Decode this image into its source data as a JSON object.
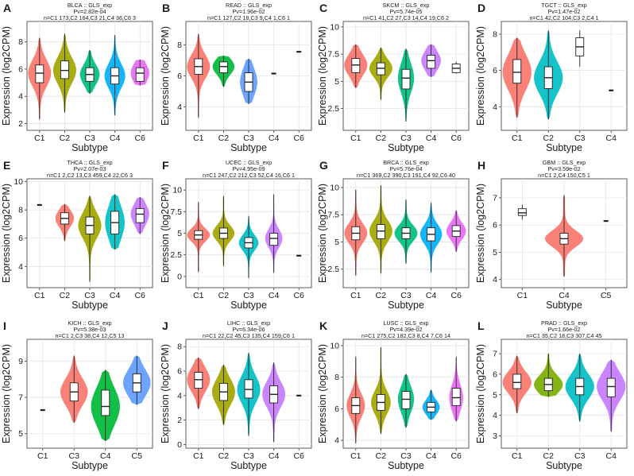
{
  "chart_data": [
    {
      "letter": "A",
      "type": "violin",
      "title": [
        "BLCA :: GLS_exp",
        "Pv=2.82e-04",
        "n=C1 173,C2 164,C3 21,C4 36,C6 3"
      ],
      "xlabel": "Subtype",
      "ylabel": "Expression (log2CPM)",
      "ylim": [
        1.5,
        9.5
      ],
      "yticks": [
        2,
        4,
        6,
        8
      ],
      "categories": [
        "C1",
        "C2",
        "C3",
        "C4",
        "C6"
      ],
      "colors": [
        "#F8766D",
        "#A3A500",
        "#00BF7D",
        "#00B0F6",
        "#E76BF3"
      ],
      "groups": [
        {
          "median": 5.7,
          "q1": 5.0,
          "q3": 6.3,
          "min": 2.3,
          "max": 8.3,
          "width": 1.0
        },
        {
          "median": 5.9,
          "q1": 5.3,
          "q3": 6.6,
          "min": 2.8,
          "max": 8.6,
          "width": 1.0
        },
        {
          "median": 5.6,
          "q1": 5.1,
          "q3": 6.1,
          "min": 4.2,
          "max": 7.4,
          "width": 0.85
        },
        {
          "median": 5.5,
          "q1": 4.9,
          "q3": 6.1,
          "min": 2.6,
          "max": 8.5,
          "width": 0.9
        },
        {
          "median": 5.7,
          "q1": 5.1,
          "q3": 6.1,
          "min": 4.8,
          "max": 6.7,
          "width": 0.8
        }
      ]
    },
    {
      "letter": "B",
      "type": "violin",
      "title": [
        "READ :: GLS_exp",
        "Pv=1.96e-02",
        "n=C1 127,C2 18,C3 9,C4 1,C6 1"
      ],
      "xlabel": "Subtype",
      "ylabel": "Expression (log2CPM)",
      "ylim": [
        2.5,
        9.5
      ],
      "yticks": [
        4,
        6,
        8
      ],
      "categories": [
        "C1",
        "C2",
        "C3",
        "C4",
        "C6"
      ],
      "colors": [
        "#F8766D",
        "#00BA38",
        "#619CFF",
        "#F8766D",
        "#F8766D"
      ],
      "groups": [
        {
          "median": 6.6,
          "q1": 6.1,
          "q3": 7.1,
          "min": 3.3,
          "max": 8.7,
          "width": 1.0
        },
        {
          "median": 6.6,
          "q1": 6.2,
          "q3": 6.9,
          "min": 5.3,
          "max": 7.3,
          "width": 0.95
        },
        {
          "median": 5.6,
          "q1": 5.0,
          "q3": 6.2,
          "min": 4.2,
          "max": 7.1,
          "width": 0.75
        },
        {
          "median": 6.15,
          "single": true
        },
        {
          "median": 7.55,
          "single": true
        }
      ]
    },
    {
      "letter": "C",
      "type": "violin",
      "title": [
        "SKCM :: GLS_exp",
        "Pv=5.74e-05",
        "n=C1 41,C2 27,C3 14,C4 19,C6 2"
      ],
      "xlabel": "Subtype",
      "ylabel": "Expression (log2CPM)",
      "ylim": [
        0.5,
        10.5
      ],
      "yticks": [
        2.5,
        5.0,
        7.5,
        10.0
      ],
      "categories": [
        "C1",
        "C2",
        "C3",
        "C4",
        "C6"
      ],
      "colors": [
        "#F8766D",
        "#A3A500",
        "#00BF7D",
        "#C77CFF",
        "#F8766D"
      ],
      "groups": [
        {
          "median": 6.5,
          "q1": 5.8,
          "q3": 7.1,
          "min": 4.4,
          "max": 8.4,
          "width": 1.0
        },
        {
          "median": 6.2,
          "q1": 5.6,
          "q3": 6.7,
          "min": 3.3,
          "max": 8.1,
          "width": 1.0
        },
        {
          "median": 5.3,
          "q1": 4.3,
          "q3": 6.1,
          "min": 1.3,
          "max": 8.0,
          "width": 0.7
        },
        {
          "median": 6.9,
          "q1": 6.2,
          "q3": 7.4,
          "min": 5.4,
          "max": 8.4,
          "width": 0.85
        },
        {
          "median": 6.2,
          "q1": 5.8,
          "q3": 6.6,
          "min": 5.7,
          "max": 6.8,
          "box_only": true
        }
      ]
    },
    {
      "letter": "D",
      "type": "violin",
      "title": [
        "TGCT :: GLS_exp",
        "Pv=1.47e-02",
        "n=C1 42,C2 104,C3 2,C4 1"
      ],
      "xlabel": "Subtype",
      "ylabel": "Expression (log2CPM)",
      "ylim": [
        2.7,
        8.7
      ],
      "yticks": [
        4,
        6,
        8
      ],
      "categories": [
        "C1",
        "C2",
        "C3",
        "C4"
      ],
      "colors": [
        "#F8766D",
        "#00BFC4",
        "#F8766D",
        "#F8766D"
      ],
      "groups": [
        {
          "median": 5.9,
          "q1": 5.3,
          "q3": 6.6,
          "min": 3.4,
          "max": 7.8,
          "width": 1.0
        },
        {
          "median": 5.6,
          "q1": 5.0,
          "q3": 6.2,
          "min": 3.3,
          "max": 8.2,
          "width": 1.0
        },
        {
          "median": 7.3,
          "q1": 6.8,
          "q3": 7.8,
          "min": 6.2,
          "max": 8.2,
          "box_only": true
        },
        {
          "median": 4.9,
          "single": true
        }
      ]
    },
    {
      "letter": "E",
      "type": "violin",
      "title": [
        "THCA :: GLS_exp",
        "Pv=2.07e-03",
        "n=C1 2,C2 13,C3 459,C4 22,C6 3"
      ],
      "xlabel": "Subtype",
      "ylabel": "Expression (log2CPM)",
      "ylim": [
        2.5,
        10.2
      ],
      "yticks": [
        4,
        6,
        8,
        10
      ],
      "categories": [
        "C1",
        "C2",
        "C3",
        "C4",
        "C6"
      ],
      "colors": [
        "#F8766D",
        "#F8766D",
        "#A3A500",
        "#00BFC4",
        "#C77CFF"
      ],
      "groups": [
        {
          "median": 8.35,
          "single": true
        },
        {
          "median": 7.4,
          "q1": 7.0,
          "q3": 7.8,
          "min": 5.8,
          "max": 8.4,
          "width": 0.8
        },
        {
          "median": 6.9,
          "q1": 6.3,
          "q3": 7.5,
          "min": 2.9,
          "max": 9.0,
          "width": 1.0
        },
        {
          "median": 7.1,
          "q1": 6.3,
          "q3": 7.9,
          "min": 5.2,
          "max": 9.1,
          "width": 0.85
        },
        {
          "median": 7.7,
          "q1": 7.1,
          "q3": 8.1,
          "min": 6.3,
          "max": 8.9,
          "width": 0.8
        }
      ]
    },
    {
      "letter": "F",
      "type": "violin",
      "title": [
        "UCEC :: GLS_exp",
        "Pv=4.95e-09",
        "n=C1 247,C2 212,C3 52,C4 16,C6 1"
      ],
      "xlabel": "Subtype",
      "ylabel": "Expression (log2CPM)",
      "ylim": [
        -1.3,
        11.3
      ],
      "yticks": [
        0.0,
        2.5,
        5.0,
        7.5,
        10.0
      ],
      "categories": [
        "C1",
        "C2",
        "C3",
        "C4",
        "C6"
      ],
      "colors": [
        "#F8766D",
        "#A3A500",
        "#00BFC4",
        "#C77CFF",
        "#F8766D"
      ],
      "groups": [
        {
          "median": 4.8,
          "q1": 4.3,
          "q3": 5.3,
          "min": 0.5,
          "max": 8.6,
          "width": 1.0
        },
        {
          "median": 5.0,
          "q1": 4.4,
          "q3": 5.6,
          "min": 1.2,
          "max": 9.3,
          "width": 0.95
        },
        {
          "median": 3.9,
          "q1": 3.3,
          "q3": 4.5,
          "min": -0.2,
          "max": 7.0,
          "width": 0.85
        },
        {
          "median": 4.4,
          "q1": 3.6,
          "q3": 5.0,
          "min": 0.4,
          "max": 9.5,
          "width": 0.75
        },
        {
          "median": 2.4,
          "single": true
        }
      ]
    },
    {
      "letter": "G",
      "type": "violin",
      "title": [
        "BRCA :: GLS_exp",
        "Pv=5.76e-04",
        "n=C1 369,C2 390,C3 191,C4 92,C6 40"
      ],
      "xlabel": "Subtype",
      "ylabel": "Expression (log2CPM)",
      "ylim": [
        0.8,
        10.8
      ],
      "yticks": [
        2.5,
        5.0,
        7.5,
        10.0
      ],
      "categories": [
        "C1",
        "C2",
        "C3",
        "C4",
        "C6"
      ],
      "colors": [
        "#F8766D",
        "#A3A500",
        "#00BF7D",
        "#00B0F6",
        "#E76BF3"
      ],
      "groups": [
        {
          "median": 5.8,
          "q1": 5.2,
          "q3": 6.4,
          "min": 1.9,
          "max": 9.8,
          "width": 1.0
        },
        {
          "median": 6.0,
          "q1": 5.3,
          "q3": 6.6,
          "min": 2.1,
          "max": 10.2,
          "width": 1.0
        },
        {
          "median": 5.8,
          "q1": 5.3,
          "q3": 6.3,
          "min": 3.0,
          "max": 8.9,
          "width": 1.0
        },
        {
          "median": 5.7,
          "q1": 5.1,
          "q3": 6.3,
          "min": 2.2,
          "max": 8.6,
          "width": 0.95
        },
        {
          "median": 6.0,
          "q1": 5.5,
          "q3": 6.5,
          "min": 4.1,
          "max": 7.9,
          "width": 0.85
        }
      ]
    },
    {
      "letter": "H",
      "type": "violin",
      "title": [
        "GBM :: GLS_exp",
        "Pv=3.59e-02",
        "n=C1 2,C4 150,C5 1"
      ],
      "xlabel": "Subtype",
      "ylabel": "Expression (log2CPM)",
      "ylim": [
        3.7,
        7.7
      ],
      "yticks": [
        4,
        5,
        6,
        7
      ],
      "categories": [
        "C1",
        "C4",
        "C5"
      ],
      "colors": [
        "#F8766D",
        "#F8766D",
        "#F8766D"
      ],
      "groups": [
        {
          "median": 6.45,
          "q1": 6.35,
          "q3": 6.6,
          "min": 6.2,
          "max": 6.75,
          "box_only": true
        },
        {
          "median": 5.5,
          "q1": 5.3,
          "q3": 5.7,
          "min": 4.1,
          "max": 7.1,
          "width": 1.0
        },
        {
          "median": 6.15,
          "single": true
        }
      ]
    },
    {
      "letter": "I",
      "type": "violin",
      "title": [
        "KICH :: GLS_exp",
        "Pv=5.38e-03",
        "n=C1 2,C3 38,C4 12,C5 13"
      ],
      "xlabel": "Subtype",
      "ylabel": "Expression (log2CPM)",
      "ylim": [
        4.2,
        10.2
      ],
      "yticks": [
        5,
        7,
        9
      ],
      "categories": [
        "C1",
        "C3",
        "C4",
        "C5"
      ],
      "colors": [
        "#F8766D",
        "#F8766D",
        "#00BA38",
        "#619CFF"
      ],
      "groups": [
        {
          "median": 6.3,
          "single": true
        },
        {
          "median": 7.3,
          "q1": 6.8,
          "q3": 7.8,
          "min": 5.6,
          "max": 9.3,
          "width": 0.95
        },
        {
          "median": 6.5,
          "q1": 6.0,
          "q3": 7.4,
          "min": 4.6,
          "max": 8.5,
          "width": 1.0
        },
        {
          "median": 7.8,
          "q1": 7.3,
          "q3": 8.3,
          "min": 6.6,
          "max": 9.3,
          "width": 0.95
        }
      ]
    },
    {
      "letter": "J",
      "type": "violin",
      "title": [
        "LIHC :: GLS_exp",
        "Pv=6.34e-06",
        "n=C1 22,C2 45,C3 135,C4 159,C6 1"
      ],
      "xlabel": "Subtype",
      "ylabel": "Expression (log2CPM)",
      "ylim": [
        -0.3,
        8.6
      ],
      "yticks": [
        0,
        2,
        4,
        6,
        8
      ],
      "categories": [
        "C1",
        "C2",
        "C3",
        "C4",
        "C6"
      ],
      "colors": [
        "#F8766D",
        "#A3A500",
        "#00BFC4",
        "#C77CFF",
        "#F8766D"
      ],
      "groups": [
        {
          "median": 5.3,
          "q1": 4.6,
          "q3": 5.9,
          "min": 2.9,
          "max": 7.1,
          "width": 1.0
        },
        {
          "median": 4.3,
          "q1": 3.6,
          "q3": 5.0,
          "min": 1.6,
          "max": 6.5,
          "width": 1.0
        },
        {
          "median": 4.5,
          "q1": 3.8,
          "q3": 5.3,
          "min": 0.7,
          "max": 7.5,
          "width": 1.0
        },
        {
          "median": 4.1,
          "q1": 3.4,
          "q3": 4.8,
          "min": 0.2,
          "max": 6.7,
          "width": 1.0
        },
        {
          "median": 4.0,
          "single": true
        }
      ]
    },
    {
      "letter": "K",
      "type": "violin",
      "title": [
        "LUSC :: GLS_exp",
        "Pv=4.39e-02",
        "n=C1 275,C2 182,C3 8,C4 7,C6 14"
      ],
      "xlabel": "Subtype",
      "ylabel": "Expression (log2CPM)",
      "ylim": [
        3.5,
        10.4
      ],
      "yticks": [
        4,
        6,
        8,
        10
      ],
      "categories": [
        "C1",
        "C2",
        "C3",
        "C4",
        "C6"
      ],
      "colors": [
        "#F8766D",
        "#A3A500",
        "#00BF7D",
        "#00B0F6",
        "#E76BF3"
      ],
      "groups": [
        {
          "median": 6.2,
          "q1": 5.7,
          "q3": 6.7,
          "min": 3.8,
          "max": 9.3,
          "width": 0.8
        },
        {
          "median": 6.4,
          "q1": 5.9,
          "q3": 6.9,
          "min": 4.4,
          "max": 9.9,
          "width": 0.85
        },
        {
          "median": 6.6,
          "q1": 6.0,
          "q3": 7.1,
          "min": 4.8,
          "max": 8.2,
          "width": 0.7
        },
        {
          "median": 6.1,
          "q1": 5.8,
          "q3": 6.4,
          "min": 5.3,
          "max": 7.2,
          "width": 0.75
        },
        {
          "median": 6.7,
          "q1": 6.2,
          "q3": 7.3,
          "min": 5.2,
          "max": 9.3,
          "width": 0.6
        }
      ]
    },
    {
      "letter": "L",
      "type": "violin",
      "title": [
        "PRAD :: GLS_exp",
        "Pv=1.66e-02",
        "n=C1 35,C2 18,C3 307,C4 45"
      ],
      "xlabel": "Subtype",
      "ylabel": "Expression (log2CPM)",
      "ylim": [
        2.4,
        7.7
      ],
      "yticks": [
        3,
        4,
        5,
        6,
        7
      ],
      "categories": [
        "C1",
        "C2",
        "C3",
        "C4"
      ],
      "colors": [
        "#F8766D",
        "#7CAE00",
        "#00BFC4",
        "#C77CFF"
      ],
      "groups": [
        {
          "median": 5.6,
          "q1": 5.3,
          "q3": 6.0,
          "min": 4.1,
          "max": 6.9,
          "width": 1.0
        },
        {
          "median": 5.5,
          "q1": 5.2,
          "q3": 5.8,
          "min": 4.9,
          "max": 7.0,
          "width": 1.0
        },
        {
          "median": 5.4,
          "q1": 5.0,
          "q3": 5.8,
          "min": 3.7,
          "max": 7.0,
          "width": 1.0
        },
        {
          "median": 5.4,
          "q1": 4.9,
          "q3": 5.8,
          "min": 3.2,
          "max": 6.7,
          "width": 1.0
        }
      ]
    }
  ]
}
